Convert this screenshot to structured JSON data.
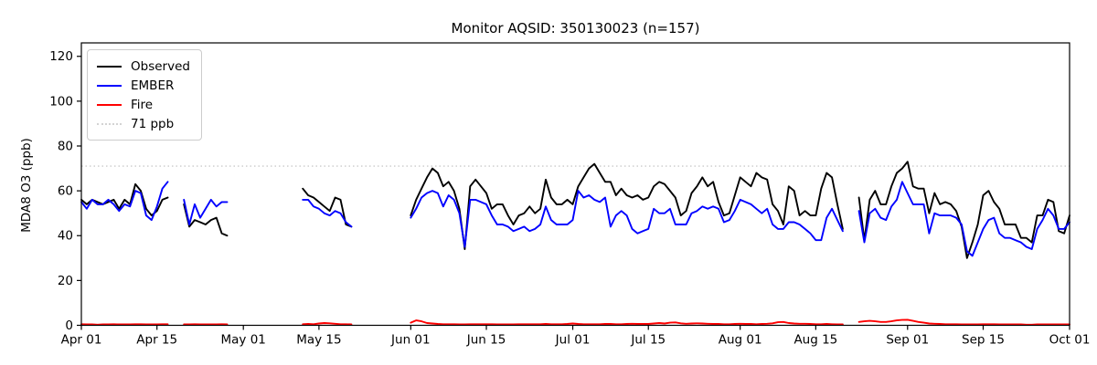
{
  "title": "Monitor AQSID: 350130023 (n=157)",
  "axes": {
    "ylabel": "MDA8 O3 (ppb)",
    "y_ticks": [
      0,
      20,
      40,
      60,
      80,
      100,
      120
    ],
    "x_ticks": [
      {
        "day": 0,
        "label": "Apr 01"
      },
      {
        "day": 14,
        "label": "Apr 15"
      },
      {
        "day": 30,
        "label": "May 01"
      },
      {
        "day": 44,
        "label": "May 15"
      },
      {
        "day": 61,
        "label": "Jun 01"
      },
      {
        "day": 75,
        "label": "Jun 15"
      },
      {
        "day": 91,
        "label": "Jul 01"
      },
      {
        "day": 105,
        "label": "Jul 15"
      },
      {
        "day": 122,
        "label": "Aug 01"
      },
      {
        "day": 136,
        "label": "Aug 15"
      },
      {
        "day": 153,
        "label": "Sep 01"
      },
      {
        "day": 167,
        "label": "Sep 15"
      },
      {
        "day": 183,
        "label": "Oct 01"
      }
    ]
  },
  "legend": {
    "items": [
      {
        "label": "Observed",
        "color": "#000000",
        "style": "solid"
      },
      {
        "label": "EMBER",
        "color": "#0000ff",
        "style": "solid"
      },
      {
        "label": "Fire",
        "color": "#ff0000",
        "style": "solid"
      },
      {
        "label": "71 ppb",
        "color": "#d3d3d3",
        "style": "dotted"
      }
    ]
  },
  "chart_data": {
    "type": "line",
    "title": "Monitor AQSID: 350130023 (n=157)",
    "xlabel": "",
    "ylabel": "MDA8 O3 (ppb)",
    "x_unit": "days since Apr 01",
    "x_range_days": [
      0,
      183
    ],
    "ylim": [
      0,
      126
    ],
    "grid": false,
    "legend_position": "upper left",
    "n_observed": 157,
    "reference_line": {
      "value": 71,
      "label": "71 ppb",
      "color": "#d3d3d3",
      "linestyle": "dotted"
    },
    "gaps_days": [
      "Apr 18-19",
      "Apr 29 - May 11",
      "May 22-31",
      "Aug 21-22"
    ],
    "series": [
      {
        "name": "Observed",
        "color": "#000000",
        "values": [
          56,
          54,
          56,
          55,
          54,
          55,
          56,
          52,
          56,
          54,
          63,
          60,
          52,
          49,
          51,
          56,
          57,
          null,
          null,
          54,
          44,
          47,
          46,
          45,
          47,
          48,
          41,
          40,
          null,
          null,
          null,
          null,
          null,
          null,
          null,
          null,
          null,
          null,
          null,
          null,
          null,
          61,
          58,
          57,
          55,
          53,
          51,
          57,
          56,
          45,
          44,
          null,
          null,
          null,
          null,
          null,
          null,
          null,
          null,
          null,
          null,
          49,
          56,
          61,
          66,
          70,
          68,
          62,
          64,
          60,
          52,
          34,
          62,
          65,
          62,
          59,
          52,
          54,
          54,
          49,
          45,
          49,
          50,
          53,
          50,
          52,
          65,
          57,
          54,
          54,
          56,
          54,
          62,
          66,
          70,
          72,
          68,
          64,
          64,
          58,
          61,
          58,
          57,
          58,
          56,
          57,
          62,
          64,
          63,
          60,
          57,
          49,
          51,
          59,
          62,
          66,
          62,
          64,
          55,
          49,
          50,
          58,
          66,
          64,
          62,
          68,
          66,
          65,
          54,
          51,
          45,
          62,
          60,
          49,
          51,
          49,
          49,
          61,
          68,
          66,
          54,
          43,
          null,
          null,
          57,
          38,
          56,
          60,
          54,
          54,
          62,
          68,
          70,
          73,
          62,
          61,
          61,
          50,
          59,
          54,
          55,
          54,
          51,
          44,
          30,
          37,
          45,
          58,
          60,
          55,
          52,
          45,
          45,
          45,
          39,
          39,
          37,
          49,
          49,
          56,
          55,
          42,
          41,
          49
        ]
      },
      {
        "name": "EMBER",
        "color": "#0000ff",
        "values": [
          55,
          52,
          56,
          54,
          54,
          56,
          54,
          51,
          54,
          53,
          60,
          59,
          49,
          47,
          53,
          61,
          64,
          null,
          null,
          56,
          45,
          54,
          48,
          52,
          56,
          53,
          55,
          55,
          null,
          null,
          null,
          null,
          null,
          null,
          null,
          null,
          null,
          null,
          null,
          null,
          null,
          56,
          56,
          53,
          52,
          50,
          49,
          51,
          50,
          46,
          44,
          null,
          null,
          null,
          null,
          null,
          null,
          null,
          null,
          null,
          null,
          48,
          52,
          57,
          59,
          60,
          59,
          53,
          58,
          56,
          50,
          35,
          56,
          56,
          55,
          54,
          49,
          45,
          45,
          44,
          42,
          43,
          44,
          42,
          43,
          45,
          53,
          47,
          45,
          45,
          45,
          47,
          60,
          57,
          58,
          56,
          55,
          57,
          44,
          49,
          51,
          49,
          43,
          41,
          42,
          43,
          52,
          50,
          50,
          52,
          45,
          45,
          45,
          50,
          51,
          53,
          52,
          53,
          52,
          46,
          47,
          51,
          56,
          55,
          54,
          52,
          50,
          52,
          45,
          43,
          43,
          46,
          46,
          45,
          43,
          41,
          38,
          38,
          48,
          52,
          47,
          42,
          null,
          null,
          51,
          37,
          50,
          52,
          48,
          47,
          53,
          56,
          64,
          59,
          54,
          54,
          54,
          41,
          50,
          49,
          49,
          49,
          48,
          45,
          33,
          31,
          37,
          43,
          47,
          48,
          41,
          39,
          39,
          38,
          37,
          35,
          34,
          43,
          47,
          52,
          49,
          43,
          43,
          46
        ]
      },
      {
        "name": "Fire",
        "color": "#ff0000",
        "values": [
          0.5,
          0.4,
          0.4,
          0.3,
          0.4,
          0.4,
          0.5,
          0.4,
          0.4,
          0.4,
          0.5,
          0.5,
          0.4,
          0.4,
          0.4,
          0.5,
          0.5,
          null,
          null,
          0.4,
          0.4,
          0.5,
          0.4,
          0.4,
          0.4,
          0.4,
          0.5,
          0.4,
          null,
          null,
          null,
          null,
          null,
          null,
          null,
          null,
          null,
          null,
          null,
          null,
          null,
          0.5,
          0.6,
          0.5,
          0.8,
          1.0,
          0.9,
          0.7,
          0.5,
          0.5,
          0.4,
          null,
          null,
          null,
          null,
          null,
          null,
          null,
          null,
          null,
          null,
          1.2,
          2.2,
          1.8,
          1.0,
          0.8,
          0.6,
          0.5,
          0.5,
          0.5,
          0.4,
          0.4,
          0.5,
          0.5,
          0.5,
          0.5,
          0.5,
          0.4,
          0.4,
          0.4,
          0.4,
          0.5,
          0.5,
          0.5,
          0.5,
          0.5,
          0.6,
          0.5,
          0.5,
          0.5,
          0.6,
          0.8,
          0.6,
          0.5,
          0.5,
          0.5,
          0.5,
          0.6,
          0.6,
          0.5,
          0.5,
          0.6,
          0.7,
          0.6,
          0.6,
          0.6,
          0.8,
          1.0,
          0.8,
          1.2,
          1.3,
          0.9,
          0.7,
          0.8,
          0.9,
          0.8,
          0.7,
          0.6,
          0.6,
          0.5,
          0.5,
          0.6,
          0.7,
          0.6,
          0.6,
          0.5,
          0.6,
          0.7,
          0.9,
          1.4,
          1.5,
          1.0,
          0.8,
          0.7,
          0.7,
          0.6,
          0.5,
          0.5,
          0.6,
          0.5,
          0.4,
          0.4,
          null,
          null,
          1.5,
          1.8,
          2.0,
          1.8,
          1.5,
          1.5,
          1.8,
          2.2,
          2.4,
          2.5,
          2.0,
          1.5,
          1.2,
          0.8,
          0.7,
          0.6,
          0.5,
          0.5,
          0.5,
          0.4,
          0.4,
          0.4,
          0.4,
          0.5,
          0.5,
          0.5,
          0.4,
          0.4,
          0.4,
          0.4,
          0.4,
          0.3,
          0.3,
          0.4,
          0.4,
          0.4,
          0.4,
          0.4,
          0.4,
          0.4
        ]
      }
    ]
  }
}
